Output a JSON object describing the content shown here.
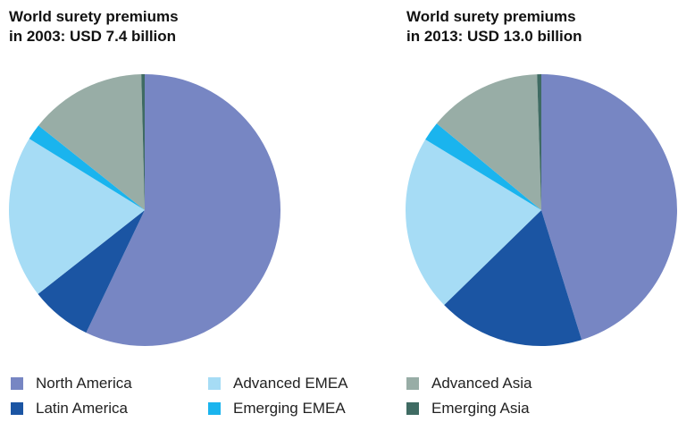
{
  "chart_data": [
    {
      "type": "pie",
      "title_lines": [
        "World surety premiums",
        "in 2003: USD 7.4 billion"
      ],
      "slices": [
        {
          "label": "North America",
          "value": 57.1,
          "color": "#7786c3"
        },
        {
          "label": "Latin America",
          "value": 7.3,
          "color": "#1b55a3"
        },
        {
          "label": "Advanced EMEA",
          "value": 19.4,
          "color": "#a6dcf5"
        },
        {
          "label": "Emerging EMEA",
          "value": 1.9,
          "color": "#1ab4ee"
        },
        {
          "label": "Advanced Asia",
          "value": 13.9,
          "color": "#98ada6"
        },
        {
          "label": "Emerging Asia",
          "value": 0.4,
          "color": "#3f6b63"
        }
      ]
    },
    {
      "type": "pie",
      "title_lines": [
        "World surety premiums",
        "in 2013: USD 13.0 billion"
      ],
      "slices": [
        {
          "label": "North America",
          "value": 45.2,
          "color": "#7786c3"
        },
        {
          "label": "Latin America",
          "value": 17.5,
          "color": "#1b55a3"
        },
        {
          "label": "Advanced EMEA",
          "value": 21.0,
          "color": "#a6dcf5"
        },
        {
          "label": "Emerging EMEA",
          "value": 2.3,
          "color": "#1ab4ee"
        },
        {
          "label": "Advanced Asia",
          "value": 13.5,
          "color": "#98ada6"
        },
        {
          "label": "Emerging Asia",
          "value": 0.5,
          "color": "#3f6b63"
        }
      ]
    }
  ],
  "legend": [
    {
      "label": "North America",
      "color": "#7786c3"
    },
    {
      "label": "Latin America",
      "color": "#1b55a3"
    },
    {
      "label": "Advanced EMEA",
      "color": "#a6dcf5"
    },
    {
      "label": "Emerging EMEA",
      "color": "#1ab4ee"
    },
    {
      "label": "Advanced Asia",
      "color": "#98ada6"
    },
    {
      "label": "Emerging Asia",
      "color": "#3f6b63"
    }
  ]
}
